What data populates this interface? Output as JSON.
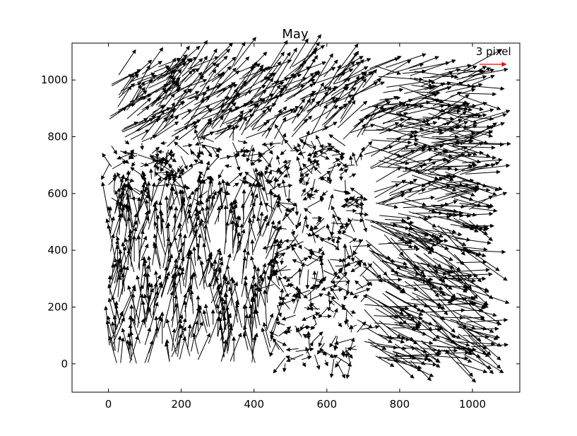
{
  "chart_data": {
    "type": "quiver",
    "title": "May",
    "xlabel": "",
    "ylabel": "",
    "xlim": [
      -100,
      1130
    ],
    "ylim": [
      -100,
      1130
    ],
    "xticks": [
      0,
      200,
      400,
      600,
      800,
      1000
    ],
    "yticks": [
      0,
      200,
      400,
      600,
      800,
      1000
    ],
    "grid": false,
    "arrow_color": "#000000",
    "quiver_key": {
      "label": "3 pixel",
      "magnitude": 3,
      "color": "#ff0000",
      "placement": "top-right"
    },
    "field": {
      "x_range": [
        0,
        1000
      ],
      "y_range": [
        0,
        1050
      ],
      "approx_arrow_count": 1700,
      "typical_magnitude_px": 3,
      "general_direction": "up-right",
      "note_lower_left": "arrows mostly point up / up-right, long",
      "note_right_half": "arrows mostly point right / down-right, long",
      "note_center_band": "short, mixed directions"
    }
  }
}
